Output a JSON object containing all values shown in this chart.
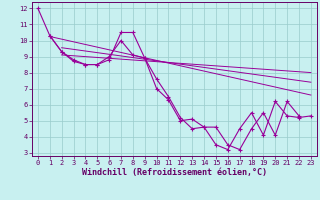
{
  "xlabel": "Windchill (Refroidissement éolien,°C)",
  "background_color": "#c8f0f0",
  "line_color": "#990099",
  "grid_color": "#99cccc",
  "xlim": [
    -0.5,
    23.5
  ],
  "ylim": [
    2.8,
    12.4
  ],
  "xticks": [
    0,
    1,
    2,
    3,
    4,
    5,
    6,
    7,
    8,
    9,
    10,
    11,
    12,
    13,
    14,
    15,
    16,
    17,
    18,
    19,
    20,
    21,
    22,
    23
  ],
  "yticks": [
    3,
    4,
    5,
    6,
    7,
    8,
    9,
    10,
    11,
    12
  ],
  "line1_x": [
    0,
    1,
    2,
    3,
    4,
    5,
    6,
    7,
    8,
    9,
    10,
    11,
    12,
    13,
    14,
    15,
    16,
    17,
    18,
    19,
    20,
    21,
    22
  ],
  "line1_y": [
    12,
    10.3,
    9.3,
    8.7,
    8.5,
    8.5,
    8.8,
    10.5,
    10.5,
    8.9,
    7.0,
    6.3,
    5.0,
    5.1,
    4.6,
    4.6,
    3.5,
    3.2,
    4.5,
    5.5,
    4.1,
    6.2,
    5.3
  ],
  "line2_x": [
    1,
    2,
    3,
    4,
    5,
    6,
    7,
    8,
    9,
    10,
    11,
    12,
    13,
    14,
    15,
    16,
    17,
    18,
    19,
    20,
    21,
    22,
    23
  ],
  "line2_y": [
    10.3,
    9.3,
    8.8,
    8.5,
    8.5,
    9.0,
    10.0,
    9.1,
    8.9,
    7.6,
    6.5,
    5.2,
    4.5,
    4.6,
    3.5,
    3.2,
    4.5,
    5.5,
    4.1,
    6.2,
    5.3,
    5.2,
    5.3
  ],
  "trend1_x": [
    1,
    23
  ],
  "trend1_y": [
    10.25,
    6.6
  ],
  "trend2_x": [
    2,
    23
  ],
  "trend2_y": [
    9.55,
    7.4
  ],
  "trend3_x": [
    2,
    23
  ],
  "trend3_y": [
    9.1,
    8.0
  ],
  "font_color": "#660066",
  "tick_fontsize": 5.0,
  "label_fontsize": 6.0
}
